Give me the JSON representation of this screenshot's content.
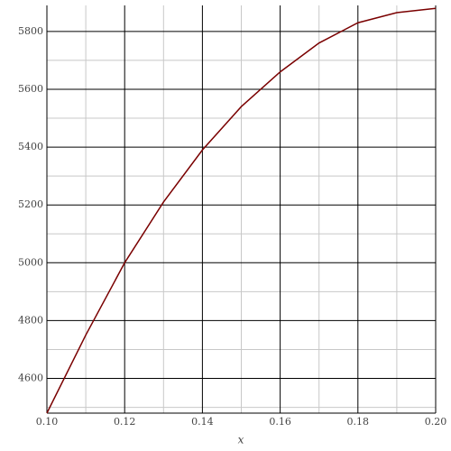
{
  "chart_data": {
    "type": "line",
    "x_label": "x",
    "x": [
      0.1,
      0.11,
      0.12,
      0.13,
      0.14,
      0.15,
      0.16,
      0.17,
      0.18,
      0.19,
      0.2
    ],
    "series": [
      {
        "color": "#7a0000",
        "values": [
          4480,
          4750,
          5000,
          5210,
          5390,
          5540,
          5660,
          5760,
          5830,
          5865,
          5880
        ]
      }
    ],
    "xlim": [
      0.1,
      0.2
    ],
    "ylim": [
      4480,
      5890
    ],
    "xticks": [
      {
        "value": 0.1,
        "label": "0.10"
      },
      0.12,
      0.14,
      0.16,
      0.18,
      {
        "value": 0.2,
        "label": "0.20"
      }
    ],
    "yticks": [
      4600,
      4800,
      5000,
      5200,
      5400,
      5600,
      5800
    ],
    "minor_xticks": [
      0.11,
      0.13,
      0.15,
      0.17,
      0.19
    ],
    "minor_yticks": [
      4500,
      4700,
      4900,
      5100,
      5300,
      5500,
      5700
    ],
    "grid": true
  }
}
